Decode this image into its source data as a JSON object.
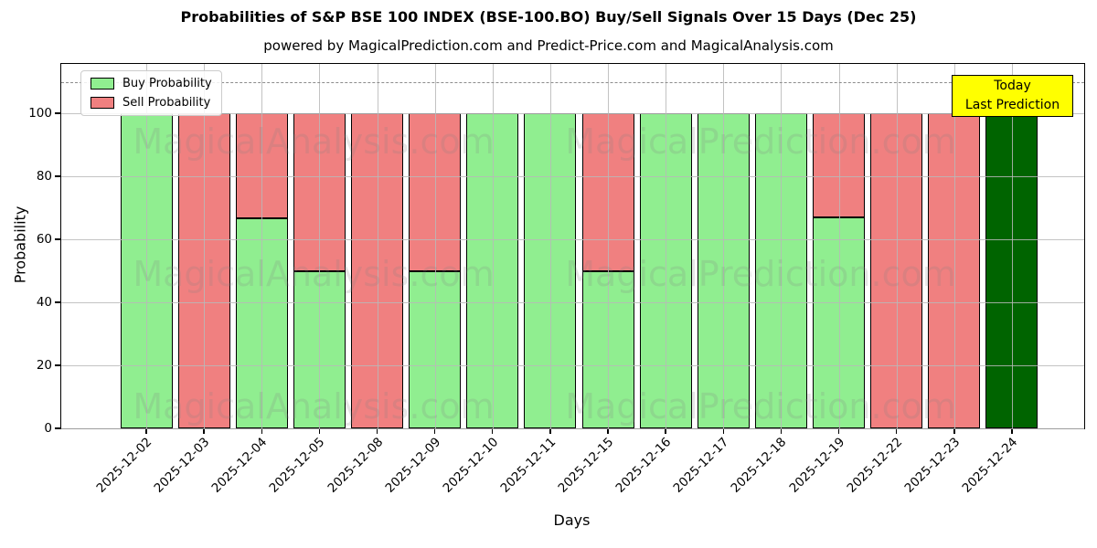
{
  "chart_data": {
    "type": "bar",
    "stacked": true,
    "title": "Probabilities of S&P BSE 100 INDEX (BSE-100.BO) Buy/Sell Signals Over 15 Days (Dec 25)",
    "subtitle": "powered by MagicalPrediction.com and Predict-Price.com and MagicalAnalysis.com",
    "xlabel": "Days",
    "ylabel": "Probability",
    "ylim": [
      0,
      116
    ],
    "yticks": [
      0,
      20,
      40,
      60,
      80,
      100
    ],
    "grid": true,
    "dashed_line_y": 110,
    "legend_position": "upper-left",
    "categories": [
      "2025-12-02",
      "2025-12-03",
      "2025-12-04",
      "2025-12-05",
      "2025-12-08",
      "2025-12-09",
      "2025-12-10",
      "2025-12-11",
      "2025-12-15",
      "2025-12-16",
      "2025-12-17",
      "2025-12-18",
      "2025-12-19",
      "2025-12-22",
      "2025-12-23",
      "2025-12-24"
    ],
    "series": [
      {
        "name": "Buy Probability",
        "color": "#90ee90",
        "in_legend": true,
        "values": [
          100,
          0,
          66.7,
          50,
          0,
          50,
          100,
          100,
          50,
          100,
          100,
          100,
          67,
          0,
          0,
          0
        ]
      },
      {
        "name": "Sell Probability",
        "color": "#f08080",
        "in_legend": true,
        "values": [
          0,
          100,
          33.3,
          50,
          100,
          50,
          0,
          0,
          50,
          0,
          0,
          0,
          33,
          100,
          100,
          0
        ]
      },
      {
        "name": "Today Last Prediction",
        "color": "#006400",
        "in_legend": false,
        "values": [
          0,
          0,
          0,
          0,
          0,
          0,
          0,
          0,
          0,
          0,
          0,
          0,
          0,
          0,
          0,
          100
        ]
      }
    ]
  },
  "annotation": {
    "line1": "Today",
    "line2": "Last Prediction",
    "bg_color": "#ffff00"
  },
  "watermarks": {
    "left_text": "MagicalAnalysis.com",
    "right_text": "MagicalPrediction.com",
    "color": "#808080"
  }
}
